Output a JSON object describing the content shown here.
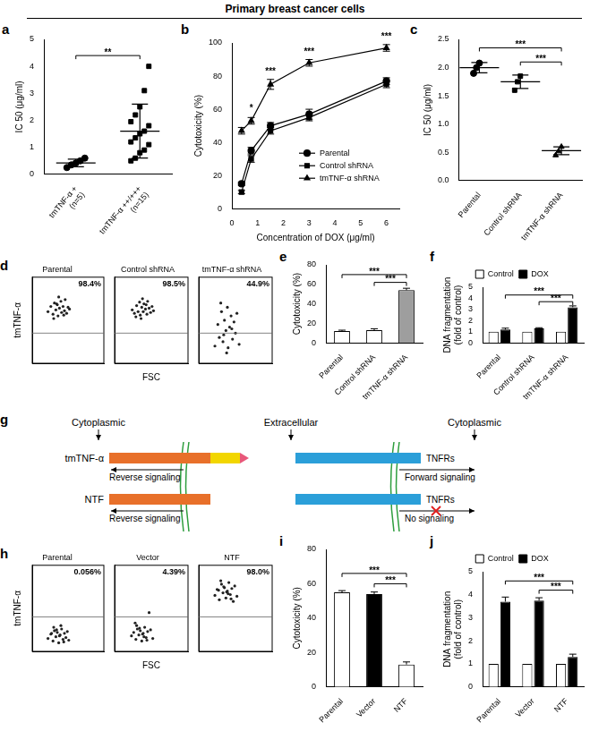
{
  "header": "Primary breast cancer cells",
  "chart_data": [
    {
      "panel": "a",
      "type": "dot",
      "ylabel": "IC 50 (μg/ml)",
      "categories": [
        [
          "tmTNF-α +",
          "(n=5)"
        ],
        [
          "tmTNF-α ++/+++",
          "(n=15)"
        ]
      ],
      "groups": [
        {
          "marker": "circle",
          "values": [
            0.25,
            0.35,
            0.42,
            0.5,
            0.6
          ],
          "mean": 0.42,
          "sd": 0.14
        },
        {
          "marker": "square",
          "values": [
            0.5,
            0.6,
            0.8,
            0.9,
            1.1,
            1.2,
            1.35,
            1.5,
            1.6,
            1.8,
            1.95,
            2.2,
            2.5,
            3.1,
            4.0
          ],
          "mean": 1.6,
          "sd": 1.0
        }
      ],
      "ylim": [
        0,
        5
      ],
      "yticks": [
        0,
        1,
        2,
        3,
        4,
        5
      ],
      "grid": false,
      "brackets": [
        {
          "from": 0,
          "to": 1,
          "y": 4.4,
          "text": "**"
        }
      ]
    },
    {
      "panel": "b",
      "type": "line",
      "xlabel": "Concentration of DOX (μg/ml)",
      "ylabel": "Cytotoxicity (%)",
      "x": [
        0.375,
        0.75,
        1.5,
        3,
        6
      ],
      "series": [
        {
          "name": "Parental",
          "marker": "circle",
          "color": "#000000",
          "values": [
            15,
            35,
            50,
            57,
            77
          ],
          "errors": [
            1,
            2,
            2,
            3,
            2
          ]
        },
        {
          "name": "Control shRNA",
          "marker": "square",
          "color": "#000000",
          "values": [
            10,
            30,
            47,
            55,
            75
          ],
          "errors": [
            1,
            2,
            2,
            2,
            2
          ]
        },
        {
          "name": "tmTNF-α shRNA",
          "marker": "triangle",
          "color": "#000000",
          "values": [
            47,
            53,
            75,
            88,
            97
          ],
          "errors": [
            2,
            2,
            3,
            2,
            2
          ]
        }
      ],
      "xlim": [
        0,
        6.5
      ],
      "xticks": [
        0,
        1,
        2,
        3,
        4,
        5,
        6
      ],
      "ylim": [
        0,
        100
      ],
      "yticks": [
        0,
        20,
        40,
        60,
        80,
        100
      ],
      "grid": false,
      "legend": "lower right",
      "annotations": [
        {
          "x": 0.75,
          "y": 58,
          "text": "*"
        },
        {
          "x": 1.5,
          "y": 80,
          "text": "***"
        },
        {
          "x": 3,
          "y": 92,
          "text": "***"
        },
        {
          "x": 6,
          "y": 101,
          "text": "***"
        }
      ]
    },
    {
      "panel": "c",
      "type": "dot",
      "ylabel": "IC 50 (μg/ml)",
      "categories": [
        "Parental",
        "Control shRNA",
        "tmTNF-α shRNA"
      ],
      "groups": [
        {
          "marker": "circle",
          "values": [
            1.9,
            2.0,
            2.08
          ],
          "mean": 2.0,
          "sd": 0.09
        },
        {
          "marker": "square",
          "values": [
            1.6,
            1.75,
            1.85
          ],
          "mean": 1.75,
          "sd": 0.12
        },
        {
          "marker": "triangle",
          "values": [
            0.45,
            0.52,
            0.6
          ],
          "mean": 0.53,
          "sd": 0.07
        }
      ],
      "ylim": [
        0,
        2.5
      ],
      "yticks": [
        {
          "value": 0,
          "label": "0.0"
        },
        0.5,
        {
          "value": 1,
          "label": "1.0"
        },
        1.5,
        {
          "value": 2,
          "label": "2.0"
        },
        2.5
      ],
      "grid": false,
      "brackets": [
        {
          "from": 0,
          "to": 2,
          "y": 2.35,
          "text": "***"
        },
        {
          "from": 1,
          "to": 2,
          "y": 2.1,
          "text": "***"
        }
      ]
    },
    {
      "panel": "d",
      "type": "flow",
      "xlabel": "FSC",
      "ylabel": "tmTNF-α",
      "tick_labels": false,
      "grid": false,
      "xlim": [
        0,
        100
      ],
      "ylim": [
        0,
        100
      ],
      "plots": [
        {
          "title": "Parental",
          "annotation": "98.4%",
          "gate": 35,
          "x": [
            22,
            26,
            29,
            31,
            33,
            35,
            36,
            38,
            40,
            41,
            43,
            45,
            46,
            48,
            50,
            52,
            30,
            37,
            44,
            34
          ],
          "y": [
            60,
            66,
            57,
            70,
            62,
            68,
            55,
            64,
            72,
            59,
            66,
            61,
            74,
            58,
            65,
            63,
            52,
            77,
            56,
            69
          ]
        },
        {
          "title": "Control shRNA",
          "annotation": "98.5%",
          "gate": 35,
          "x": [
            24,
            27,
            30,
            32,
            34,
            35,
            37,
            39,
            40,
            42,
            44,
            45,
            47,
            49,
            51,
            53,
            29,
            38,
            43,
            36
          ],
          "y": [
            62,
            58,
            67,
            60,
            71,
            56,
            65,
            60,
            69,
            63,
            57,
            72,
            64,
            59,
            66,
            61,
            54,
            75,
            68,
            52
          ]
        },
        {
          "title": "tmTNF-α shRNA",
          "annotation": "44.9%",
          "gate": 35,
          "x": [
            22,
            26,
            28,
            31,
            33,
            35,
            37,
            39,
            40,
            42,
            44,
            46,
            48,
            50,
            52,
            55,
            30,
            38,
            45,
            34
          ],
          "y": [
            20,
            45,
            30,
            60,
            25,
            50,
            38,
            65,
            18,
            42,
            55,
            28,
            48,
            35,
            58,
            22,
            70,
            12,
            40,
            33
          ]
        }
      ]
    },
    {
      "panel": "e",
      "type": "bar",
      "ylabel": "Cytotoxicity (%)",
      "categories": [
        "Parental",
        "Control shRNA",
        "tmTNF-α shRNA"
      ],
      "values": [
        12,
        13,
        54
      ],
      "errors": [
        1,
        1.5,
        2
      ],
      "colors": [
        "#ffffff",
        "#ffffff",
        "#9e9e9e"
      ],
      "ylim": [
        0,
        80
      ],
      "yticks": [
        0,
        20,
        40,
        60,
        80
      ],
      "grid": false,
      "brackets": [
        {
          "from": 0,
          "to": 2,
          "y": 70,
          "text": "***"
        },
        {
          "from": 1,
          "to": 2,
          "y": 62,
          "text": "***"
        }
      ]
    },
    {
      "panel": "f",
      "type": "bar",
      "ylabel": [
        "DNA fragmentation",
        "(fold of control)"
      ],
      "categories": [
        "Parental",
        "Control shRNA",
        "tmTNF-α shRNA"
      ],
      "series": [
        {
          "name": "Control",
          "color": "#ffffff",
          "values": [
            1,
            1,
            1
          ]
        },
        {
          "name": "DOX",
          "color": "#000000",
          "values": [
            1.2,
            1.3,
            3.2
          ],
          "errors": [
            0.12,
            0.06,
            0.12
          ]
        }
      ],
      "ylim": [
        0,
        5
      ],
      "yticks": [
        0,
        1,
        2,
        3,
        4,
        5
      ],
      "grid": false,
      "legend": "top",
      "brackets": [
        {
          "from": 0,
          "to": 2,
          "series": 1,
          "y": 4.3,
          "text": "***"
        },
        {
          "from": 1,
          "to": 2,
          "series": 1,
          "y": 3.7,
          "text": "***"
        }
      ]
    },
    {
      "panel": "h",
      "type": "flow",
      "xlabel": "FSC",
      "ylabel": "tmTNF-α",
      "tick_labels": false,
      "grid": false,
      "xlim": [
        0,
        100
      ],
      "ylim": [
        0,
        100
      ],
      "plots": [
        {
          "title": "Parental",
          "annotation": "0.056%",
          "gate": 40,
          "x": [
            22,
            26,
            29,
            31,
            33,
            35,
            37,
            39,
            41,
            43,
            45,
            47,
            49,
            51,
            30,
            38,
            44,
            34,
            27,
            40
          ],
          "y": [
            15,
            20,
            12,
            24,
            17,
            22,
            10,
            19,
            26,
            14,
            21,
            16,
            23,
            13,
            28,
            18,
            11,
            25,
            21,
            30
          ]
        },
        {
          "title": "Vector",
          "annotation": "4.39%",
          "gate": 40,
          "x": [
            23,
            26,
            29,
            31,
            33,
            35,
            37,
            39,
            41,
            43,
            45,
            47,
            49,
            52,
            30,
            38,
            44,
            34,
            28,
            40
          ],
          "y": [
            18,
            22,
            14,
            26,
            19,
            24,
            12,
            21,
            28,
            16,
            23,
            45,
            25,
            15,
            30,
            20,
            13,
            27,
            33,
            17
          ]
        },
        {
          "title": "NTF",
          "annotation": "98.0%",
          "gate": 40,
          "x": [
            22,
            25,
            28,
            31,
            33,
            35,
            37,
            39,
            41,
            43,
            45,
            47,
            49,
            52,
            30,
            38,
            44,
            34,
            27,
            40
          ],
          "y": [
            65,
            72,
            60,
            78,
            68,
            74,
            62,
            70,
            80,
            66,
            73,
            58,
            76,
            64,
            82,
            69,
            61,
            75,
            71,
            67
          ]
        }
      ]
    },
    {
      "panel": "i",
      "type": "bar",
      "ylabel": "Cytotoxicity (%)",
      "categories": [
        "Parental",
        "Vector",
        "NTF"
      ],
      "values": [
        55,
        54,
        13
      ],
      "errors": [
        1,
        1.2,
        1.5
      ],
      "colors": [
        "#ffffff",
        "#000000",
        "#ffffff"
      ],
      "ylim": [
        0,
        80
      ],
      "yticks": [
        0,
        20,
        40,
        60,
        80
      ],
      "grid": false,
      "brackets": [
        {
          "from": 0,
          "to": 2,
          "y": 66,
          "text": "***"
        },
        {
          "from": 1,
          "to": 2,
          "y": 60,
          "text": "***"
        }
      ]
    },
    {
      "panel": "j",
      "type": "bar",
      "ylabel": [
        "DNA fragmentation",
        "(fold of control)"
      ],
      "categories": [
        "Parental",
        "Vector",
        "NTF"
      ],
      "series": [
        {
          "name": "Control",
          "color": "#ffffff",
          "values": [
            1,
            1,
            1
          ]
        },
        {
          "name": "DOX",
          "color": "#000000",
          "values": [
            3.7,
            3.75,
            1.3
          ],
          "errors": [
            0.2,
            0.12,
            0.12
          ]
        }
      ],
      "ylim": [
        0,
        5
      ],
      "yticks": [
        0,
        1,
        2,
        3,
        4,
        5
      ],
      "grid": false,
      "legend": "top",
      "brackets": [
        {
          "from": 0,
          "to": 2,
          "series": 1,
          "y": 4.6,
          "text": "***"
        },
        {
          "from": 1,
          "to": 2,
          "series": 1,
          "y": 4.2,
          "text": "***"
        }
      ]
    }
  ],
  "diagram": {
    "panel": "g",
    "regions": [
      "Cytoplasmic",
      "Extracellular",
      "Cytoplasmic"
    ],
    "rows": [
      {
        "ligand": "tmTNF-α",
        "ligand_signal": "Reverse signaling",
        "receptor": "TNFRs",
        "receptor_signal": "Forward signaling"
      },
      {
        "ligand": "NTF",
        "ligand_signal": "Reverse signaling",
        "receptor": "TNFRs",
        "receptor_signal": "No signaling"
      }
    ]
  }
}
